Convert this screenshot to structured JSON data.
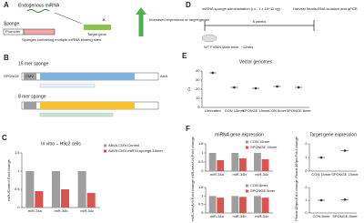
{
  "panel_A": {
    "label": "A",
    "endogenous": "Endogenous miRNA",
    "sponge": "Sponge",
    "promoter": "Promoter",
    "target": "Target gene",
    "sponges_text": "Sponges containing multiple miRNA binding sites",
    "increased": "Increased expression of target genes"
  },
  "panel_B": {
    "label": "B",
    "title_15": "15 mer sponge",
    "construct": "SPONGE",
    "promoter": "CMV",
    "polya": "AAA",
    "title_8": "8 mer sponge"
  },
  "panel_D": {
    "label": "D",
    "administration": "miRNA sponge administration (i.v., 1 x 10^11 vg)",
    "harvest": "Harvest hearts RNA isolation and qPCR",
    "duration": "8 weeks",
    "mice": "WT FVB/N Male mice, ~12wks"
  },
  "chart_data": [
    {
      "type": "bar",
      "panel": "C",
      "title": "In vitro – H9c2 cells",
      "ylabel": "miR-/Control Fold change",
      "categories": [
        "miR-34a",
        "miR-34b",
        "miR-34c"
      ],
      "series": [
        {
          "name": "AAV6-CMV-Control",
          "color": "#9e9e9e",
          "values": [
            1,
            1,
            1
          ]
        },
        {
          "name": "AAV6-CMV-miR34-sponge-15mer",
          "color": "#d9534f",
          "values": [
            0.45,
            0.5,
            0.4
          ]
        }
      ],
      "ylim": [
        0,
        1.5
      ],
      "yticks": [
        0,
        0.5,
        1,
        1.5
      ]
    },
    {
      "type": "dot",
      "panel": "E",
      "title": "Vector genomes",
      "ylabel": "Ct",
      "categories": [
        "Untreated",
        "CON 15mer",
        "SPONGE 15mer",
        "CON 8mer",
        "SPONGE 8mer"
      ],
      "values": [
        38,
        22,
        21,
        23,
        22
      ],
      "color": "#333333",
      "ylim": [
        0,
        40
      ],
      "yticks": [
        0,
        10,
        20,
        30,
        40
      ]
    },
    {
      "type": "bar",
      "panel": "F",
      "title": "miRNA gene expression",
      "ylabel": "miR-/neo/U6 Fold change",
      "categories": [
        "miR-34a",
        "miR-34b",
        "miR-34c"
      ],
      "series": [
        {
          "name": "CON 15mer",
          "color": "#9e9e9e",
          "values": [
            1,
            1,
            1
          ]
        },
        {
          "name": "SPONGE 15mer",
          "color": "#d9534f",
          "values": [
            0.6,
            0.7,
            0.65
          ]
        }
      ],
      "ylim": [
        0,
        1.5
      ],
      "yticks": [
        0,
        0.5,
        1,
        1.5
      ]
    },
    {
      "type": "dot",
      "title": "Target gene expression",
      "ylabel": "Phactr4/Hprt Fold change",
      "categories": [
        "CON 15mer",
        "SPONGE 15mer"
      ],
      "values": [
        1,
        1.5
      ],
      "color": "#333333",
      "ylim": [
        0,
        2
      ],
      "yticks": [
        0,
        1,
        2
      ]
    },
    {
      "type": "bar",
      "ylabel": "miR-/neo/U6 Fold change",
      "categories": [
        "miR-34a",
        "miR-34b",
        "miR-34c"
      ],
      "series": [
        {
          "name": "CON 8mer",
          "color": "#9e9e9e",
          "values": [
            1,
            1,
            1
          ]
        },
        {
          "name": "SPONGE 8mer",
          "color": "#d9534f",
          "values": [
            0.9,
            0.95,
            0.9
          ]
        }
      ],
      "ylim": [
        0,
        1.5
      ],
      "yticks": [
        0,
        0.5,
        1,
        1.5
      ]
    },
    {
      "type": "dot",
      "ylabel": "Phactr4/Hprt Fold change",
      "categories": [
        "CON 8mer",
        "SPONGE 8mer"
      ],
      "values": [
        1,
        1.05
      ],
      "color": "#333333",
      "ylim": [
        0,
        2
      ],
      "yticks": [
        0,
        1,
        2
      ]
    }
  ]
}
